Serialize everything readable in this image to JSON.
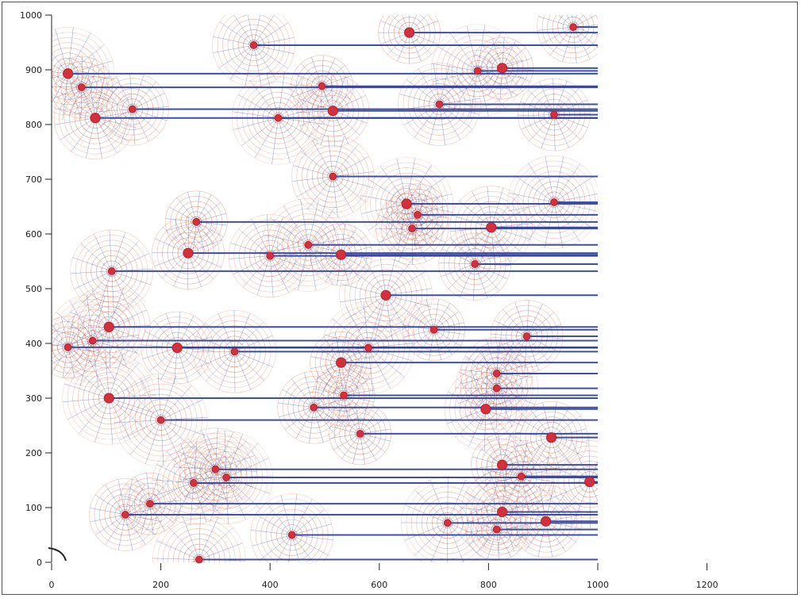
{
  "chart_data": {
    "type": "scatter",
    "title": "",
    "xlabel": "",
    "ylabel": "",
    "xlim": [
      0,
      1300
    ],
    "ylim": [
      0,
      1000
    ],
    "x_ticks": [
      0,
      200,
      400,
      600,
      800,
      1000,
      1200
    ],
    "y_ticks": [
      0,
      100,
      200,
      300,
      400,
      500,
      600,
      700,
      800,
      900,
      1000
    ],
    "plot_region_x": [
      0,
      1000
    ],
    "colors": {
      "charge": "#d2303c",
      "field_line": "#2a3c9c",
      "equipotential": "#e0653a",
      "axis": "#222222"
    },
    "grid": false,
    "legend": "none",
    "series": [
      {
        "points": [
          {
            "x": 655,
            "y": 968
          },
          {
            "x": 955,
            "y": 978
          },
          {
            "x": 370,
            "y": 945
          },
          {
            "x": 30,
            "y": 893
          },
          {
            "x": 55,
            "y": 868
          },
          {
            "x": 148,
            "y": 828
          },
          {
            "x": 80,
            "y": 812
          },
          {
            "x": 415,
            "y": 812
          },
          {
            "x": 495,
            "y": 870
          },
          {
            "x": 515,
            "y": 825
          },
          {
            "x": 710,
            "y": 837
          },
          {
            "x": 780,
            "y": 898
          },
          {
            "x": 825,
            "y": 903
          },
          {
            "x": 920,
            "y": 818
          },
          {
            "x": 515,
            "y": 705
          },
          {
            "x": 650,
            "y": 655
          },
          {
            "x": 670,
            "y": 635
          },
          {
            "x": 660,
            "y": 610
          },
          {
            "x": 805,
            "y": 612
          },
          {
            "x": 920,
            "y": 658
          },
          {
            "x": 265,
            "y": 622
          },
          {
            "x": 250,
            "y": 565
          },
          {
            "x": 400,
            "y": 560
          },
          {
            "x": 470,
            "y": 580
          },
          {
            "x": 530,
            "y": 562
          },
          {
            "x": 775,
            "y": 545
          },
          {
            "x": 110,
            "y": 532
          },
          {
            "x": 612,
            "y": 488
          },
          {
            "x": 700,
            "y": 425
          },
          {
            "x": 870,
            "y": 413
          },
          {
            "x": 105,
            "y": 430
          },
          {
            "x": 75,
            "y": 405
          },
          {
            "x": 30,
            "y": 393
          },
          {
            "x": 230,
            "y": 392
          },
          {
            "x": 335,
            "y": 385
          },
          {
            "x": 580,
            "y": 392
          },
          {
            "x": 530,
            "y": 365
          },
          {
            "x": 815,
            "y": 345
          },
          {
            "x": 815,
            "y": 318
          },
          {
            "x": 105,
            "y": 300
          },
          {
            "x": 535,
            "y": 305
          },
          {
            "x": 480,
            "y": 283
          },
          {
            "x": 795,
            "y": 280
          },
          {
            "x": 200,
            "y": 260
          },
          {
            "x": 565,
            "y": 235
          },
          {
            "x": 915,
            "y": 228
          },
          {
            "x": 300,
            "y": 170
          },
          {
            "x": 320,
            "y": 155
          },
          {
            "x": 825,
            "y": 178
          },
          {
            "x": 860,
            "y": 157
          },
          {
            "x": 260,
            "y": 145
          },
          {
            "x": 985,
            "y": 147
          },
          {
            "x": 180,
            "y": 107
          },
          {
            "x": 135,
            "y": 87
          },
          {
            "x": 825,
            "y": 92
          },
          {
            "x": 725,
            "y": 72
          },
          {
            "x": 815,
            "y": 60
          },
          {
            "x": 905,
            "y": 75
          },
          {
            "x": 440,
            "y": 50
          },
          {
            "x": 270,
            "y": 5
          }
        ]
      }
    ]
  }
}
